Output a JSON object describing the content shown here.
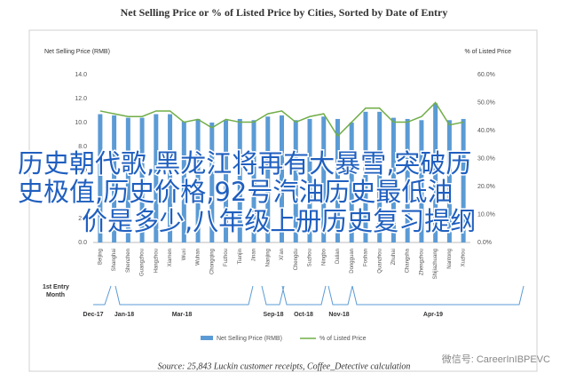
{
  "chart_data": {
    "type": "bar",
    "title": "Net Selling Price or % of Listed Price by Cities, Sorted by Date of Entry",
    "y_label": "Net Selling Price (RMB)",
    "y2_label": "% of Listed Price",
    "categories": [
      "Beijing",
      "Shanghai",
      "Shenzhen",
      "Guangzhou",
      "Hangzhou",
      "Xiamen",
      "Wuxi",
      "Wuhan",
      "Chongqing",
      "Fuzhou",
      "Tianjin",
      "Jinan",
      "Nanjing",
      "Xi'an",
      "Chengdu",
      "Suzhou",
      "Ningbo",
      "Dalian",
      "Dongguan",
      "Foshan",
      "Quanzhou",
      "Zhuhai",
      "Changsha",
      "Zhengzhou",
      "Shijiazhuang",
      "Nantong",
      "Xuzhou"
    ],
    "series": [
      {
        "name": "Net Selling Price (RMB)",
        "type": "bar",
        "color": "#5b9bd5",
        "values": [
          10.7,
          10.6,
          10.4,
          10.4,
          10.7,
          10.7,
          10.1,
          10.3,
          10.0,
          10.2,
          10.3,
          10.2,
          10.5,
          10.6,
          10.2,
          10.3,
          10.5,
          10.3,
          10.0,
          10.9,
          10.9,
          10.4,
          10.3,
          10.2,
          11.6,
          10.2,
          10.3
        ]
      },
      {
        "name": "% of Listed Price",
        "type": "line",
        "axis": "y2",
        "color": "#70ad47",
        "values": [
          47,
          46,
          45,
          45,
          47,
          47,
          43,
          44,
          41,
          44,
          43,
          43,
          46,
          47,
          43,
          45,
          46,
          38,
          43,
          48,
          48,
          43,
          43,
          45,
          50,
          42,
          43
        ]
      }
    ],
    "ylim": [
      0,
      14
    ],
    "yticks": [
      {
        "value": 0,
        "label": "0.0"
      },
      {
        "value": 2,
        "label": "2.0"
      },
      {
        "value": 4,
        "label": "4.0"
      },
      {
        "value": 6,
        "label": "6.0"
      },
      {
        "value": 8,
        "label": "8.0"
      },
      {
        "value": 10,
        "label": "10.0"
      },
      {
        "value": 12,
        "label": "12.0"
      },
      {
        "value": 14,
        "label": "14.0"
      }
    ],
    "y2lim": [
      0,
      60
    ],
    "y2ticks": [
      {
        "value": 0,
        "label": "0.0%"
      },
      {
        "value": 10,
        "label": "10.0%"
      },
      {
        "value": 20,
        "label": "20.0%"
      },
      {
        "value": 30,
        "label": "30.0%"
      },
      {
        "value": 40,
        "label": "40.0%"
      },
      {
        "value": 50,
        "label": "50.0%"
      },
      {
        "value": 60,
        "label": "60.0%"
      }
    ],
    "timeline_title": [
      "1st Entry",
      "Month"
    ],
    "timeline_months": [
      "Dec-17",
      "Jan-18",
      "Mar-18",
      "Sep-18",
      "Oct-18",
      "Nov-18",
      "Apr-19"
    ],
    "source": "Source: 25,843 Luckin customer receipts, Coffee_Detective calculation"
  },
  "overlay_lines": [
    "历史朝代歌,黑龙江将再有大暴雪,突破历",
    "史极值,历史价格,92号汽油历史最低油",
    "价是多少,八年级上册历史复习提纲"
  ],
  "watermark": "微信号: CareerInIBPEVC"
}
